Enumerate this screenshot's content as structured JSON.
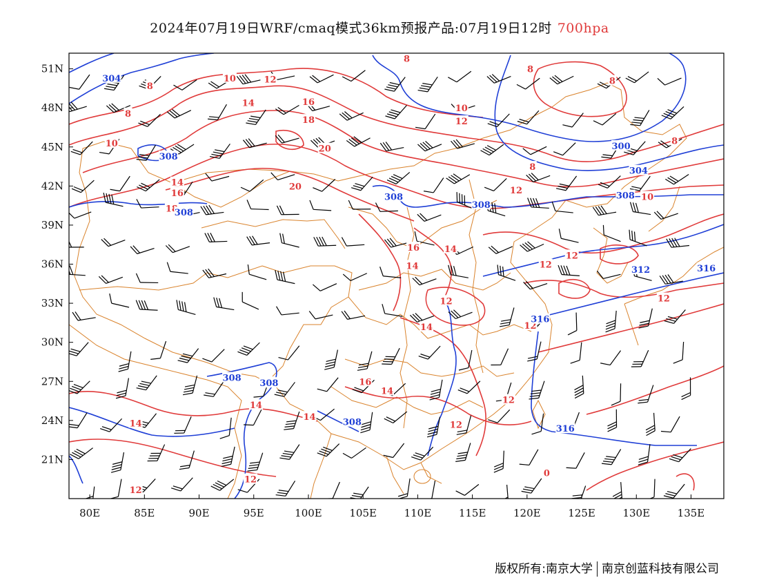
{
  "title": {
    "main": "2024年07月19日WRF/cmaq模式36km预报产品:07月19日12时",
    "level": "700hpa"
  },
  "axes": {
    "lon_labels": [
      "80E",
      "85E",
      "90E",
      "95E",
      "100E",
      "105E",
      "110E",
      "115E",
      "120E",
      "125E",
      "130E",
      "135E"
    ],
    "lat_labels": [
      "51N",
      "48N",
      "45N",
      "42N",
      "39N",
      "36N",
      "33N",
      "30N",
      "27N",
      "24N",
      "21N"
    ]
  },
  "legend_colors": {
    "temperature": "#e03a3a",
    "geopotential": "#1f3fd6",
    "borders": "#d9822b",
    "wind": "#000000"
  },
  "temperature_labels": [
    {
      "text": "10",
      "lon": 92.8,
      "lat": 50.3
    },
    {
      "text": "12",
      "lon": 96.5,
      "lat": 50.2
    },
    {
      "text": "8",
      "lon": 85.5,
      "lat": 49.7
    },
    {
      "text": "14",
      "lon": 94.5,
      "lat": 48.4
    },
    {
      "text": "16",
      "lon": 100.0,
      "lat": 48.5
    },
    {
      "text": "10",
      "lon": 114.0,
      "lat": 48.0
    },
    {
      "text": "12",
      "lon": 114.0,
      "lat": 47.0
    },
    {
      "text": "8",
      "lon": 83.5,
      "lat": 47.6
    },
    {
      "text": "18",
      "lon": 100.0,
      "lat": 47.1
    },
    {
      "text": "10",
      "lon": 82.0,
      "lat": 45.3
    },
    {
      "text": "20",
      "lon": 101.5,
      "lat": 44.9
    },
    {
      "text": "8",
      "lon": 109.0,
      "lat": 51.8
    },
    {
      "text": "8",
      "lon": 120.3,
      "lat": 51.0
    },
    {
      "text": "8",
      "lon": 127.8,
      "lat": 50.1
    },
    {
      "text": "8",
      "lon": 133.5,
      "lat": 45.5
    },
    {
      "text": "8",
      "lon": 120.5,
      "lat": 43.5
    },
    {
      "text": "14",
      "lon": 88.0,
      "lat": 42.3
    },
    {
      "text": "16",
      "lon": 88.0,
      "lat": 41.5
    },
    {
      "text": "18",
      "lon": 87.5,
      "lat": 40.3
    },
    {
      "text": "20",
      "lon": 98.8,
      "lat": 42.0
    },
    {
      "text": "12",
      "lon": 119.0,
      "lat": 41.7
    },
    {
      "text": "10",
      "lon": 131.0,
      "lat": 41.2
    },
    {
      "text": "16",
      "lon": 109.6,
      "lat": 37.3
    },
    {
      "text": "14",
      "lon": 113.0,
      "lat": 37.2
    },
    {
      "text": "14",
      "lon": 109.5,
      "lat": 35.9
    },
    {
      "text": "12",
      "lon": 121.7,
      "lat": 36.0
    },
    {
      "text": "12",
      "lon": 124.1,
      "lat": 36.7
    },
    {
      "text": "12",
      "lon": 132.5,
      "lat": 33.4
    },
    {
      "text": "12",
      "lon": 112.6,
      "lat": 33.2
    },
    {
      "text": "14",
      "lon": 110.8,
      "lat": 31.2
    },
    {
      "text": "12",
      "lon": 120.3,
      "lat": 31.3
    },
    {
      "text": "16",
      "lon": 105.2,
      "lat": 27.0
    },
    {
      "text": "14",
      "lon": 107.2,
      "lat": 26.3
    },
    {
      "text": "12",
      "lon": 118.3,
      "lat": 25.6
    },
    {
      "text": "14",
      "lon": 95.2,
      "lat": 25.2
    },
    {
      "text": "14",
      "lon": 84.2,
      "lat": 23.8
    },
    {
      "text": "14",
      "lon": 100.1,
      "lat": 24.3
    },
    {
      "text": "12",
      "lon": 113.5,
      "lat": 23.7
    },
    {
      "text": "12",
      "lon": 84.2,
      "lat": 18.7
    },
    {
      "text": "12",
      "lon": 94.7,
      "lat": 19.5
    },
    {
      "text": "0",
      "lon": 121.8,
      "lat": 20.0
    }
  ],
  "height_labels": [
    {
      "text": "304",
      "lon": 82.0,
      "lat": 50.3
    },
    {
      "text": "308",
      "lon": 87.2,
      "lat": 44.3
    },
    {
      "text": "308",
      "lon": 88.6,
      "lat": 40.0
    },
    {
      "text": "308",
      "lon": 107.8,
      "lat": 41.2
    },
    {
      "text": "308",
      "lon": 115.8,
      "lat": 40.6
    },
    {
      "text": "300",
      "lon": 128.6,
      "lat": 45.1
    },
    {
      "text": "304",
      "lon": 130.2,
      "lat": 43.2
    },
    {
      "text": "308",
      "lon": 129.0,
      "lat": 41.3
    },
    {
      "text": "312",
      "lon": 130.4,
      "lat": 35.6
    },
    {
      "text": "316",
      "lon": 136.4,
      "lat": 35.7
    },
    {
      "text": "316",
      "lon": 121.2,
      "lat": 31.8
    },
    {
      "text": "308",
      "lon": 93.0,
      "lat": 27.3
    },
    {
      "text": "308",
      "lon": 96.4,
      "lat": 26.9
    },
    {
      "text": "308",
      "lon": 104.0,
      "lat": 23.9
    },
    {
      "text": "316",
      "lon": 123.5,
      "lat": 23.4
    }
  ],
  "footer": {
    "left": "版权所有:南京大学",
    "right": "南京创蓝科技有限公司"
  }
}
